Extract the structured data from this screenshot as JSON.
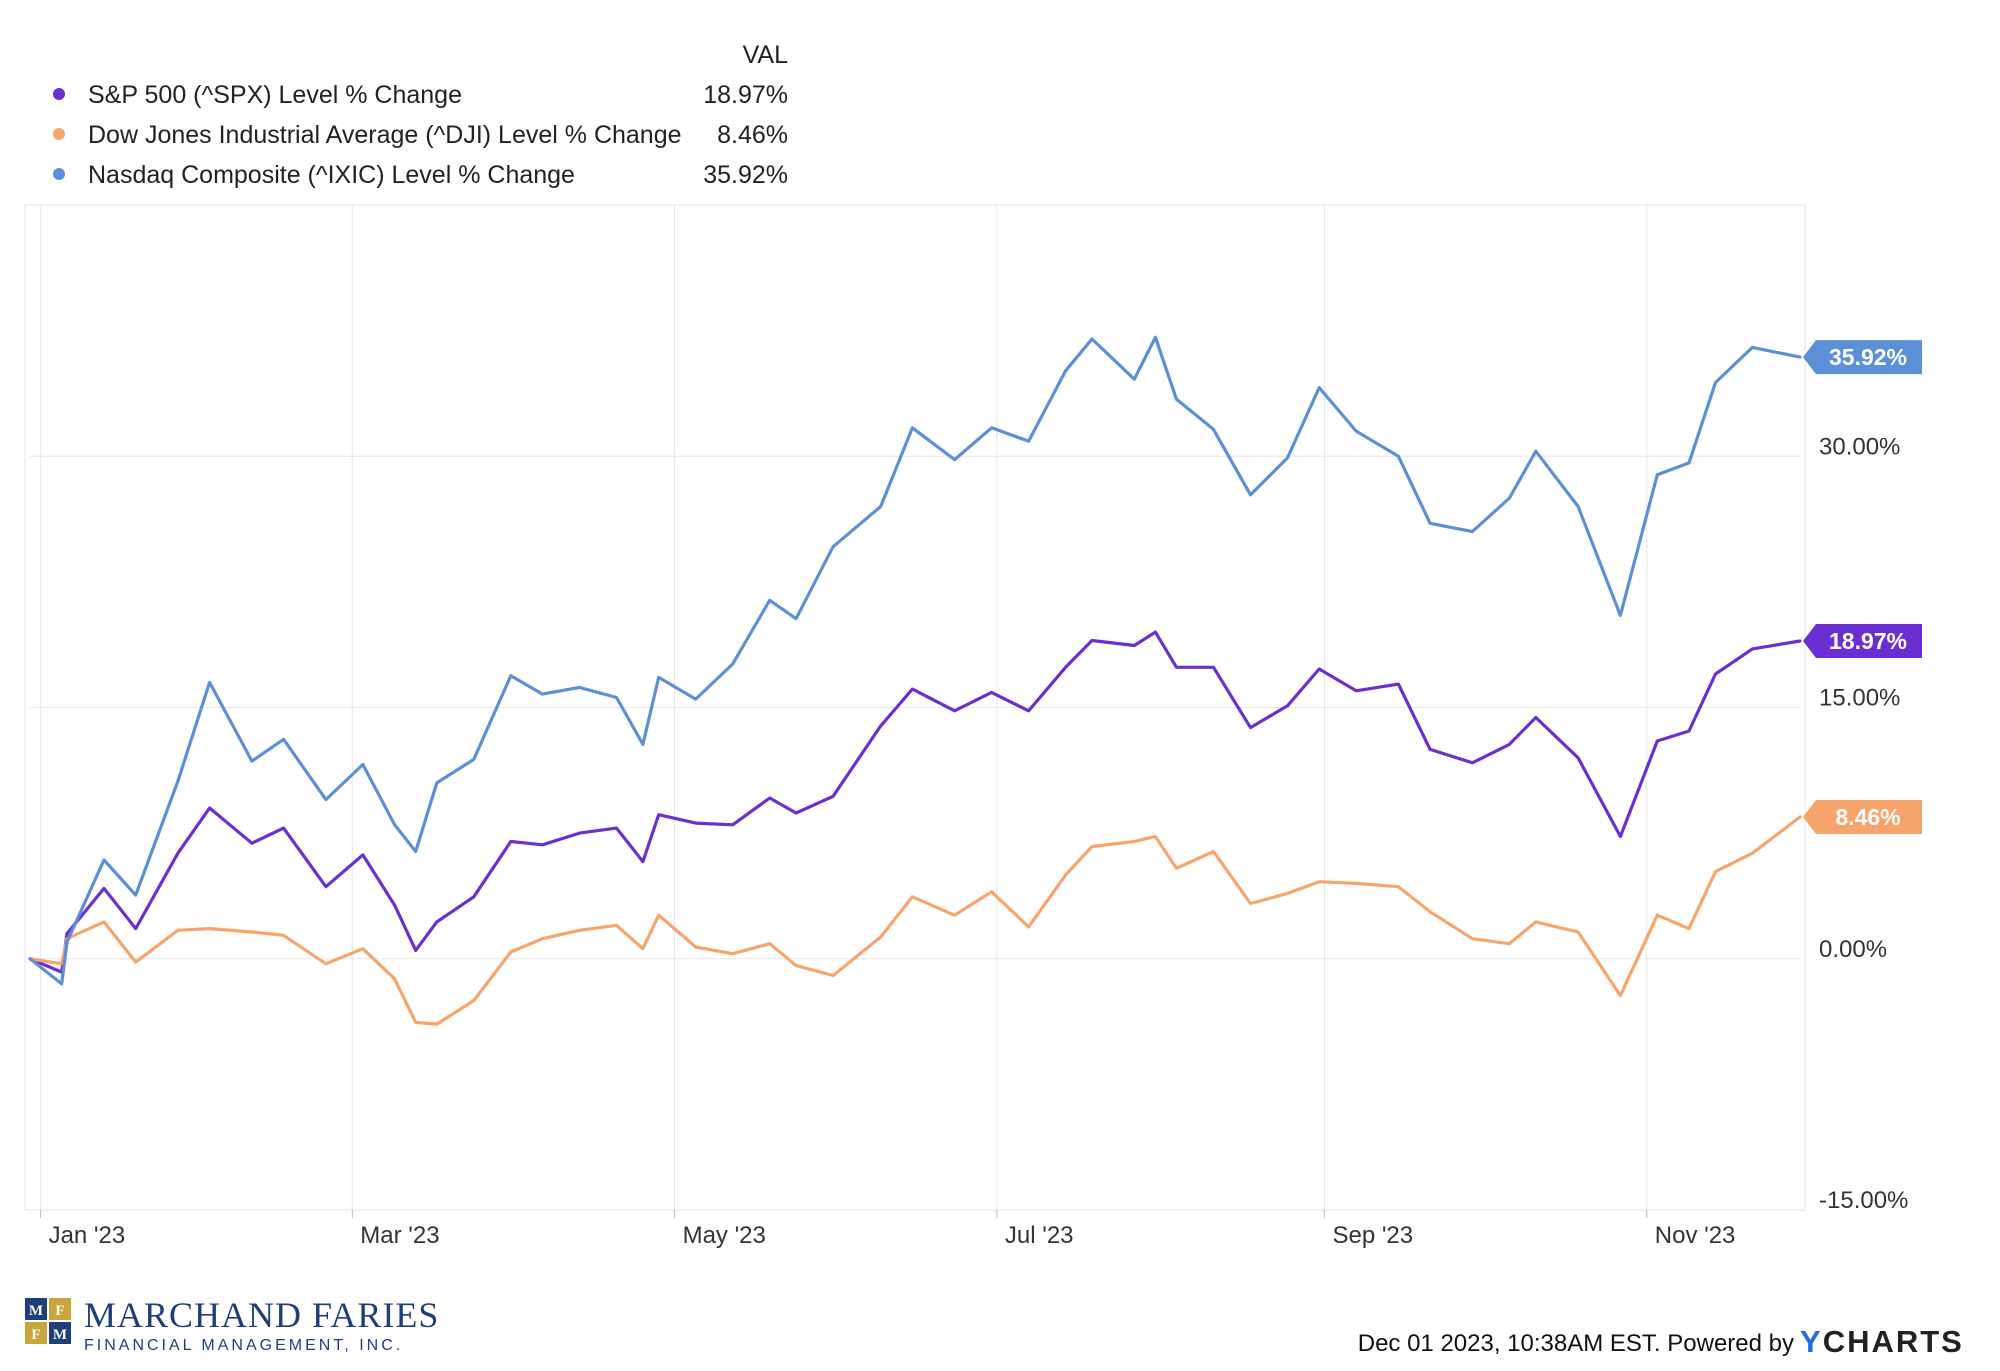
{
  "chart_data": {
    "type": "line",
    "legend_header": "VAL",
    "legend_placement": "top-left",
    "grid": true,
    "x_tick_labels": [
      "Jan '23",
      "Mar '23",
      "May '23",
      "Jul '23",
      "Sep '23",
      "Nov '23"
    ],
    "y_tick_labels": [
      "30.00%",
      "15.00%",
      "0.00%",
      "-15.00%"
    ],
    "y_ticks": [
      30,
      15,
      0,
      -15
    ],
    "ylim": [
      -15,
      45
    ],
    "x_range": [
      "2022-12-30",
      "2023-11-30"
    ],
    "series": [
      {
        "name": "S&P 500 (^SPX) Level % Change",
        "value_label": "18.97%",
        "color": "#6a2fd1",
        "points": [
          [
            "2022-12-30",
            0
          ],
          [
            "2023-01-05",
            -0.8
          ],
          [
            "2023-01-06",
            1.5
          ],
          [
            "2023-01-13",
            4.2
          ],
          [
            "2023-01-19",
            1.8
          ],
          [
            "2023-01-27",
            6.3
          ],
          [
            "2023-02-02",
            9.0
          ],
          [
            "2023-02-10",
            6.9
          ],
          [
            "2023-02-16",
            7.8
          ],
          [
            "2023-02-24",
            4.3
          ],
          [
            "2023-03-03",
            6.2
          ],
          [
            "2023-03-09",
            3.2
          ],
          [
            "2023-03-13",
            0.5
          ],
          [
            "2023-03-17",
            2.2
          ],
          [
            "2023-03-24",
            3.7
          ],
          [
            "2023-03-31",
            7.0
          ],
          [
            "2023-04-06",
            6.8
          ],
          [
            "2023-04-13",
            7.5
          ],
          [
            "2023-04-20",
            7.8
          ],
          [
            "2023-04-25",
            5.8
          ],
          [
            "2023-04-28",
            8.6
          ],
          [
            "2023-05-05",
            8.1
          ],
          [
            "2023-05-12",
            8.0
          ],
          [
            "2023-05-19",
            9.6
          ],
          [
            "2023-05-24",
            8.7
          ],
          [
            "2023-05-31",
            9.7
          ],
          [
            "2023-06-09",
            13.9
          ],
          [
            "2023-06-15",
            16.1
          ],
          [
            "2023-06-23",
            14.8
          ],
          [
            "2023-06-30",
            15.9
          ],
          [
            "2023-07-07",
            14.8
          ],
          [
            "2023-07-14",
            17.4
          ],
          [
            "2023-07-19",
            19.0
          ],
          [
            "2023-07-27",
            18.7
          ],
          [
            "2023-07-31",
            19.5
          ],
          [
            "2023-08-04",
            17.4
          ],
          [
            "2023-08-11",
            17.4
          ],
          [
            "2023-08-18",
            13.8
          ],
          [
            "2023-08-25",
            15.1
          ],
          [
            "2023-08-31",
            17.3
          ],
          [
            "2023-09-07",
            16.0
          ],
          [
            "2023-09-15",
            16.4
          ],
          [
            "2023-09-21",
            12.5
          ],
          [
            "2023-09-29",
            11.7
          ],
          [
            "2023-10-06",
            12.8
          ],
          [
            "2023-10-11",
            14.4
          ],
          [
            "2023-10-19",
            12.0
          ],
          [
            "2023-10-27",
            7.3
          ],
          [
            "2023-11-03",
            13.0
          ],
          [
            "2023-11-09",
            13.6
          ],
          [
            "2023-11-14",
            17.0
          ],
          [
            "2023-11-21",
            18.5
          ],
          [
            "2023-11-30",
            18.97
          ]
        ]
      },
      {
        "name": "Dow Jones Industrial Average (^DJI) Level % Change",
        "value_label": "8.46%",
        "color": "#f7a46c",
        "points": [
          [
            "2022-12-30",
            0
          ],
          [
            "2023-01-05",
            -0.3
          ],
          [
            "2023-01-06",
            1.2
          ],
          [
            "2023-01-13",
            2.2
          ],
          [
            "2023-01-19",
            -0.2
          ],
          [
            "2023-01-27",
            1.7
          ],
          [
            "2023-02-02",
            1.8
          ],
          [
            "2023-02-10",
            1.6
          ],
          [
            "2023-02-16",
            1.4
          ],
          [
            "2023-02-24",
            -0.3
          ],
          [
            "2023-03-03",
            0.6
          ],
          [
            "2023-03-09",
            -1.2
          ],
          [
            "2023-03-13",
            -3.8
          ],
          [
            "2023-03-17",
            -3.9
          ],
          [
            "2023-03-24",
            -2.5
          ],
          [
            "2023-03-31",
            0.4
          ],
          [
            "2023-04-06",
            1.2
          ],
          [
            "2023-04-13",
            1.7
          ],
          [
            "2023-04-20",
            2.0
          ],
          [
            "2023-04-25",
            0.6
          ],
          [
            "2023-04-28",
            2.6
          ],
          [
            "2023-05-05",
            0.7
          ],
          [
            "2023-05-12",
            0.3
          ],
          [
            "2023-05-19",
            0.9
          ],
          [
            "2023-05-24",
            -0.4
          ],
          [
            "2023-05-31",
            -1.0
          ],
          [
            "2023-06-09",
            1.3
          ],
          [
            "2023-06-15",
            3.7
          ],
          [
            "2023-06-23",
            2.6
          ],
          [
            "2023-06-30",
            4.0
          ],
          [
            "2023-07-07",
            1.9
          ],
          [
            "2023-07-14",
            5.0
          ],
          [
            "2023-07-19",
            6.7
          ],
          [
            "2023-07-27",
            7.0
          ],
          [
            "2023-07-31",
            7.3
          ],
          [
            "2023-08-04",
            5.4
          ],
          [
            "2023-08-11",
            6.4
          ],
          [
            "2023-08-18",
            3.3
          ],
          [
            "2023-08-25",
            3.9
          ],
          [
            "2023-08-31",
            4.6
          ],
          [
            "2023-09-07",
            4.5
          ],
          [
            "2023-09-15",
            4.3
          ],
          [
            "2023-09-21",
            2.8
          ],
          [
            "2023-09-29",
            1.2
          ],
          [
            "2023-10-06",
            0.9
          ],
          [
            "2023-10-11",
            2.2
          ],
          [
            "2023-10-19",
            1.6
          ],
          [
            "2023-10-27",
            -2.2
          ],
          [
            "2023-11-03",
            2.6
          ],
          [
            "2023-11-09",
            1.8
          ],
          [
            "2023-11-14",
            5.2
          ],
          [
            "2023-11-21",
            6.3
          ],
          [
            "2023-11-30",
            8.46
          ]
        ]
      },
      {
        "name": "Nasdaq Composite (^IXIC) Level % Change",
        "value_label": "35.92%",
        "color": "#5b8fd6",
        "points": [
          [
            "2022-12-30",
            0
          ],
          [
            "2023-01-05",
            -1.5
          ],
          [
            "2023-01-06",
            1.0
          ],
          [
            "2023-01-13",
            5.9
          ],
          [
            "2023-01-19",
            3.8
          ],
          [
            "2023-01-27",
            10.6
          ],
          [
            "2023-02-02",
            16.5
          ],
          [
            "2023-02-10",
            11.8
          ],
          [
            "2023-02-16",
            13.1
          ],
          [
            "2023-02-24",
            9.5
          ],
          [
            "2023-03-03",
            11.6
          ],
          [
            "2023-03-09",
            8.0
          ],
          [
            "2023-03-13",
            6.4
          ],
          [
            "2023-03-17",
            10.5
          ],
          [
            "2023-03-24",
            11.9
          ],
          [
            "2023-03-31",
            16.9
          ],
          [
            "2023-04-06",
            15.8
          ],
          [
            "2023-04-13",
            16.2
          ],
          [
            "2023-04-20",
            15.6
          ],
          [
            "2023-04-25",
            12.8
          ],
          [
            "2023-04-28",
            16.8
          ],
          [
            "2023-05-05",
            15.5
          ],
          [
            "2023-05-12",
            17.6
          ],
          [
            "2023-05-19",
            21.4
          ],
          [
            "2023-05-24",
            20.3
          ],
          [
            "2023-05-31",
            24.6
          ],
          [
            "2023-06-09",
            27.0
          ],
          [
            "2023-06-15",
            31.7
          ],
          [
            "2023-06-23",
            29.8
          ],
          [
            "2023-06-30",
            31.7
          ],
          [
            "2023-07-07",
            30.9
          ],
          [
            "2023-07-14",
            35.1
          ],
          [
            "2023-07-19",
            37.0
          ],
          [
            "2023-07-27",
            34.6
          ],
          [
            "2023-07-31",
            37.1
          ],
          [
            "2023-08-04",
            33.4
          ],
          [
            "2023-08-11",
            31.6
          ],
          [
            "2023-08-18",
            27.7
          ],
          [
            "2023-08-25",
            29.9
          ],
          [
            "2023-08-31",
            34.1
          ],
          [
            "2023-09-07",
            31.5
          ],
          [
            "2023-09-15",
            30.0
          ],
          [
            "2023-09-21",
            26.0
          ],
          [
            "2023-09-29",
            25.5
          ],
          [
            "2023-10-06",
            27.5
          ],
          [
            "2023-10-11",
            30.3
          ],
          [
            "2023-10-19",
            27.0
          ],
          [
            "2023-10-27",
            20.5
          ],
          [
            "2023-11-03",
            28.9
          ],
          [
            "2023-11-09",
            29.6
          ],
          [
            "2023-11-14",
            34.4
          ],
          [
            "2023-11-21",
            36.5
          ],
          [
            "2023-11-30",
            35.92
          ]
        ]
      }
    ]
  },
  "footer": {
    "logo_name": "MARCHAND FARIES",
    "logo_sub": "FINANCIAL MANAGEMENT, INC.",
    "logo_letters": [
      "M",
      "F",
      "F",
      "M"
    ],
    "timestamp": "Dec 01 2023, 10:38AM EST. Powered by",
    "brand": "YCHARTS",
    "brand_accent": "#1f6fe0"
  }
}
